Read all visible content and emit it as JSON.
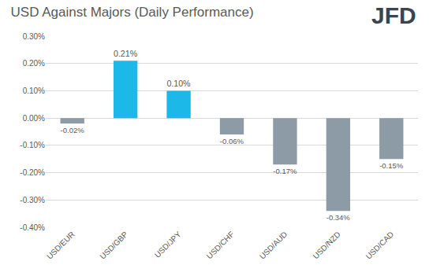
{
  "chart_data": {
    "type": "bar",
    "title": "USD Against Majors (Daily Performance)",
    "annotations": [
      "JFD"
    ],
    "categories": [
      "USD/EUR",
      "USD/GBP",
      "USD/JPY",
      "USD/CHF",
      "USD/AUD",
      "USD/NZD",
      "USD/CAD"
    ],
    "values": [
      -0.02,
      0.21,
      0.1,
      -0.06,
      -0.17,
      -0.34,
      -0.15
    ],
    "value_labels": [
      "-0.02%",
      "0.21%",
      "0.10%",
      "-0.06%",
      "-0.17%",
      "-0.34%",
      "-0.15%"
    ],
    "colors": [
      "#8c9ba5",
      "#1bb8e8",
      "#1bb8e8",
      "#8c9ba5",
      "#8c9ba5",
      "#8c9ba5",
      "#8c9ba5"
    ],
    "data_labels": true,
    "ylim": [
      -0.4,
      0.3
    ],
    "yticks": [
      {
        "value": -0.4,
        "label": "-0.40%"
      },
      {
        "value": -0.3,
        "label": "-0.30%"
      },
      {
        "value": -0.2,
        "label": "-0.20%"
      },
      {
        "value": -0.1,
        "label": "-0.10%"
      },
      {
        "value": 0,
        "label": "0.00%"
      },
      {
        "value": 0.1,
        "label": "0.10%"
      },
      {
        "value": 0.2,
        "label": "0.20%"
      },
      {
        "value": 0.3,
        "label": "0.30%"
      }
    ],
    "grid": true
  }
}
